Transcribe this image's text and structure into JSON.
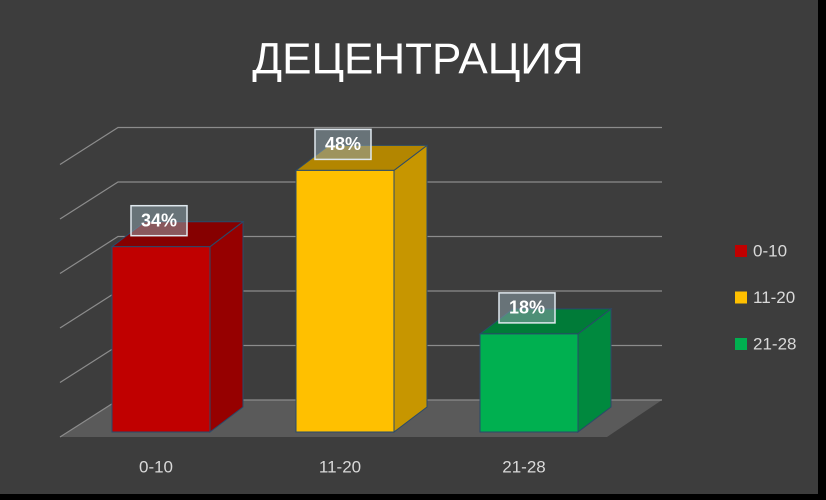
{
  "chart_data": {
    "type": "bar3d",
    "title": "ДЕЦЕНТРАЦИЯ",
    "categories": [
      "0-10",
      "11-20",
      "21-28"
    ],
    "values": [
      34,
      48,
      18
    ],
    "value_labels": [
      "34%",
      "48%",
      "18%"
    ],
    "colors": [
      "#c00000",
      "#ffc000",
      "#00b050"
    ],
    "ylim": [
      0,
      50
    ],
    "yticks": [
      0,
      10,
      20,
      30,
      40,
      50
    ],
    "grid": true,
    "legend": "right"
  }
}
